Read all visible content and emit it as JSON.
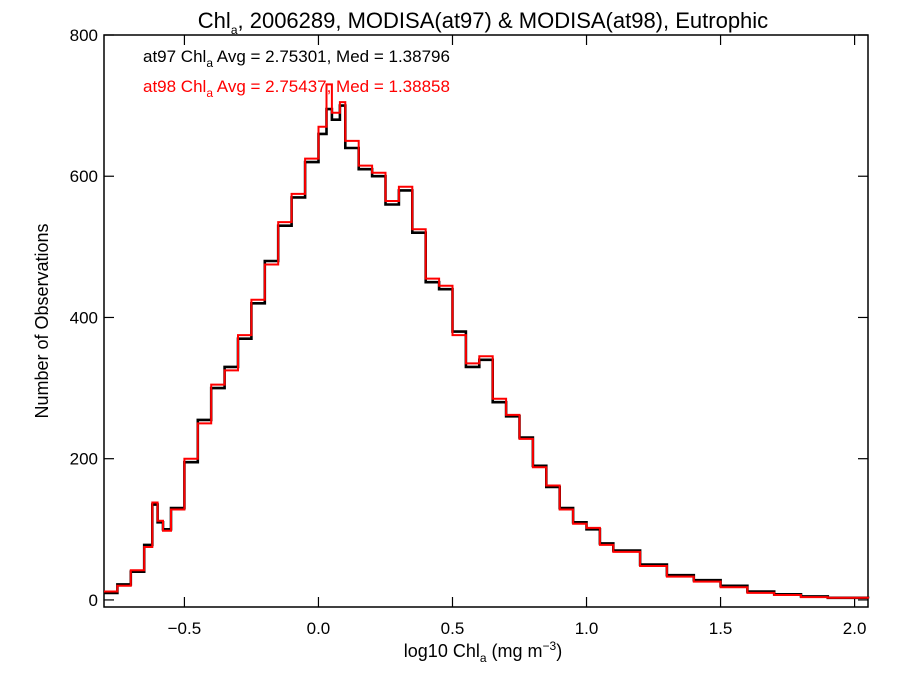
{
  "chart_data": {
    "type": "histogram-step",
    "title": {
      "prefix": "Chl",
      "sub": "a",
      "rest": ", 2006289, MODISA(at97) & MODISA(at98), Eutrophic"
    },
    "xlabel": {
      "prefix": "log10 Chl",
      "sub": "a",
      "rest": " (mg m",
      "sup": "−3",
      "end": ")"
    },
    "ylabel": "Number of Observations",
    "xlim": [
      -0.8,
      2.05
    ],
    "ylim": [
      -10,
      800
    ],
    "x_ticks": [
      {
        "value": -0.5,
        "label": "−0.5"
      },
      {
        "value": 0.0,
        "label": "0.0"
      },
      {
        "value": 0.5,
        "label": "0.5"
      },
      {
        "value": 1.0,
        "label": "1.0"
      },
      {
        "value": 1.5,
        "label": "1.5"
      },
      {
        "value": 2.0,
        "label": "2.0"
      }
    ],
    "y_ticks": [
      {
        "value": 0,
        "label": "0"
      },
      {
        "value": 200,
        "label": "200"
      },
      {
        "value": 400,
        "label": "400"
      },
      {
        "value": 600,
        "label": "600"
      },
      {
        "value": 800,
        "label": "800"
      }
    ],
    "stats": [
      {
        "prefix": "at97 Chl",
        "sub": "a",
        "rest": " Avg = 2.75301, Med = 1.38796",
        "color": "#000000"
      },
      {
        "prefix": "at98 Chl",
        "sub": "a",
        "rest": " Avg = 2.75437, Med = 1.38858",
        "color": "#ff0000"
      }
    ],
    "series": [
      {
        "name": "at97",
        "color": "#000000",
        "x": [
          -0.8,
          -0.75,
          -0.7,
          -0.65,
          -0.62,
          -0.6,
          -0.58,
          -0.55,
          -0.5,
          -0.45,
          -0.4,
          -0.35,
          -0.3,
          -0.25,
          -0.2,
          -0.15,
          -0.1,
          -0.05,
          0.0,
          0.03,
          0.05,
          0.08,
          0.1,
          0.15,
          0.2,
          0.25,
          0.3,
          0.35,
          0.4,
          0.45,
          0.5,
          0.55,
          0.6,
          0.65,
          0.7,
          0.75,
          0.8,
          0.85,
          0.9,
          0.95,
          1.0,
          1.05,
          1.1,
          1.2,
          1.3,
          1.4,
          1.5,
          1.6,
          1.7,
          1.8,
          1.9,
          2.05
        ],
        "y": [
          10,
          22,
          40,
          78,
          135,
          110,
          100,
          130,
          195,
          255,
          300,
          330,
          370,
          420,
          480,
          530,
          570,
          620,
          660,
          695,
          680,
          700,
          640,
          610,
          600,
          560,
          580,
          520,
          450,
          440,
          380,
          330,
          340,
          280,
          260,
          230,
          190,
          160,
          130,
          110,
          100,
          80,
          70,
          50,
          35,
          28,
          20,
          12,
          8,
          5,
          3,
          2
        ]
      },
      {
        "name": "at98",
        "color": "#ff0000",
        "x": [
          -0.8,
          -0.75,
          -0.7,
          -0.65,
          -0.62,
          -0.6,
          -0.58,
          -0.55,
          -0.5,
          -0.45,
          -0.4,
          -0.35,
          -0.3,
          -0.25,
          -0.2,
          -0.15,
          -0.1,
          -0.05,
          0.0,
          0.03,
          0.05,
          0.08,
          0.1,
          0.15,
          0.2,
          0.25,
          0.3,
          0.35,
          0.4,
          0.45,
          0.5,
          0.55,
          0.6,
          0.65,
          0.7,
          0.75,
          0.8,
          0.85,
          0.9,
          0.95,
          1.0,
          1.05,
          1.1,
          1.2,
          1.3,
          1.4,
          1.5,
          1.6,
          1.7,
          1.8,
          1.9,
          2.05
        ],
        "y": [
          12,
          20,
          42,
          75,
          138,
          112,
          98,
          128,
          200,
          250,
          305,
          325,
          375,
          425,
          475,
          535,
          575,
          625,
          670,
          730,
          690,
          705,
          650,
          615,
          605,
          565,
          585,
          525,
          455,
          445,
          375,
          335,
          345,
          285,
          262,
          228,
          188,
          162,
          128,
          108,
          102,
          78,
          68,
          48,
          33,
          26,
          18,
          10,
          7,
          4,
          3,
          2
        ]
      }
    ]
  }
}
